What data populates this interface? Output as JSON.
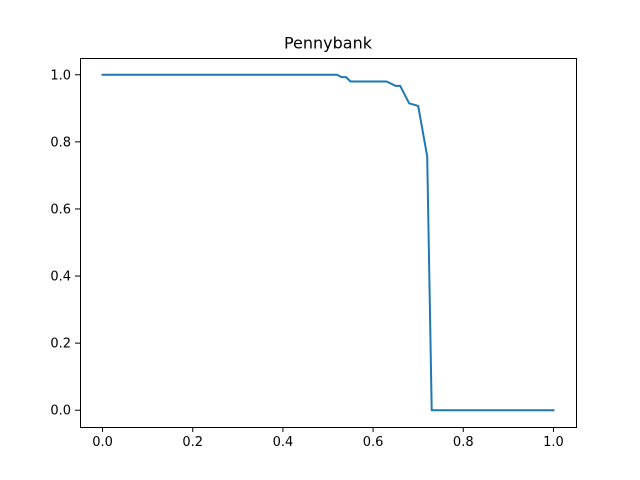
{
  "chart_data": {
    "type": "line",
    "title": "Pennybank",
    "xlabel": "",
    "ylabel": "",
    "xlim": [
      -0.05,
      1.05
    ],
    "ylim": [
      -0.05,
      1.05
    ],
    "xticks": [
      "0.0",
      "0.2",
      "0.4",
      "0.6",
      "0.8",
      "1.0"
    ],
    "yticks": [
      "0.0",
      "0.2",
      "0.4",
      "0.6",
      "0.8",
      "1.0"
    ],
    "grid": false,
    "legend": "none",
    "series": [
      {
        "color": "#1f77b4",
        "x": [
          0.0,
          0.52,
          0.53,
          0.54,
          0.55,
          0.63,
          0.65,
          0.66,
          0.68,
          0.7,
          0.72,
          0.73,
          1.0
        ],
        "y": [
          1.0,
          1.0,
          0.993,
          0.993,
          0.98,
          0.98,
          0.967,
          0.967,
          0.915,
          0.907,
          0.757,
          0.0,
          0.0
        ]
      }
    ]
  }
}
